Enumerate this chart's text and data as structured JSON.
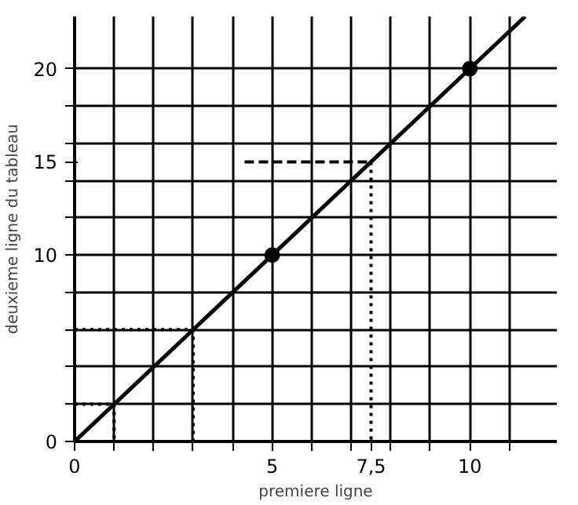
{
  "chart_data": {
    "type": "line",
    "xlabel": "premiere ligne",
    "ylabel": "deuxieme ligne du tableau",
    "xlim": [
      0,
      12.2
    ],
    "ylim": [
      0,
      22.8
    ],
    "xticks": [
      0,
      {
        "value": 1,
        "label": null
      },
      {
        "value": 2,
        "label": null
      },
      {
        "value": 3,
        "label": null
      },
      {
        "value": 4,
        "label": null
      },
      5,
      {
        "value": 6,
        "label": null
      },
      {
        "value": 7,
        "label": null
      },
      {
        "value": 7.5,
        "label": "7,5"
      },
      {
        "value": 8,
        "label": null
      },
      {
        "value": 9,
        "label": null
      },
      10,
      {
        "value": 11,
        "label": null
      }
    ],
    "yticks": [
      0,
      {
        "value": 2,
        "label": null
      },
      {
        "value": 4,
        "label": null
      },
      {
        "value": 6,
        "label": null
      },
      {
        "value": 8,
        "label": null
      },
      10,
      {
        "value": 12,
        "label": null
      },
      {
        "value": 14,
        "label": null
      },
      {
        "value": 15,
        "label": "15"
      },
      {
        "value": 16,
        "label": null
      },
      {
        "value": 18,
        "label": null
      },
      20
    ],
    "grid": true,
    "series": [
      {
        "color": "#000000",
        "x": [
          0,
          11.4
        ],
        "values": [
          0,
          22.8
        ],
        "line_style": "solid"
      },
      {
        "type": "scatter",
        "color": "#000000",
        "x": [
          5,
          10
        ],
        "values": [
          10,
          20
        ],
        "marker": "circle"
      },
      {
        "color": "#000000",
        "x": [
          0,
          1,
          1
        ],
        "values": [
          2,
          2,
          0
        ],
        "line_style": "dotted"
      },
      {
        "color": "#000000",
        "x": [
          0,
          3,
          3
        ],
        "values": [
          6,
          6,
          0
        ],
        "line_style": "dotted"
      },
      {
        "color": "#000000",
        "x": [
          4.3,
          7.5
        ],
        "values": [
          15,
          15
        ],
        "line_style": "dashed"
      },
      {
        "color": "#000000",
        "x": [
          7.5,
          7.5
        ],
        "values": [
          15,
          0
        ],
        "line_style": "dotted"
      }
    ]
  }
}
